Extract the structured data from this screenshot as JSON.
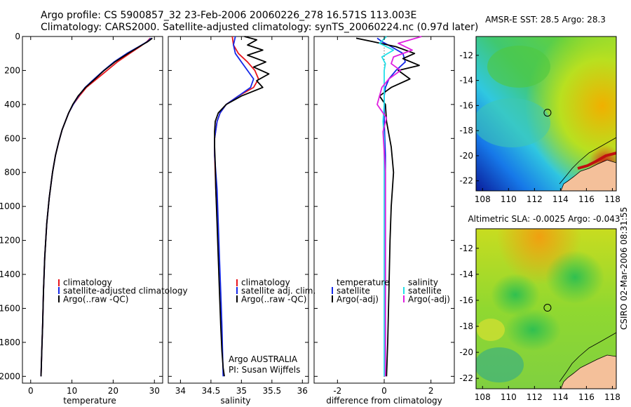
{
  "header": {
    "title_line1": "Argo profile: CS 5900857_32 23-Feb-2006 20060226_278 16.571S 113.003E",
    "title_line2": "Climatology: CARS2000. Satellite-adjusted climatology: synTS_20060224.nc (0.97d later)"
  },
  "footer": {
    "stamp": "CSIRO 02-Mar-2006 08:31:55",
    "credit_line1": "Argo AUSTRALIA",
    "credit_line2": "PI: Susan Wijffels"
  },
  "colors": {
    "climatology": "#e8141c",
    "satellite": "#1428e8",
    "argo": "#000000",
    "diff_sal_satellite": "#22e0e8",
    "diff_sal_argo": "#e020e0",
    "land": "#f4c09a"
  },
  "chart_data": [
    {
      "id": "temperature",
      "type": "line",
      "xlabel": "temperature",
      "ylabel": "",
      "xlim": [
        -2,
        32
      ],
      "ylim": [
        2040,
        0
      ],
      "xticks": [
        0,
        10,
        20,
        30
      ],
      "yticks": [
        0,
        200,
        400,
        600,
        800,
        1000,
        1200,
        1400,
        1600,
        1800,
        2000
      ],
      "legend": {
        "position": "lower-center",
        "entries": [
          "climatology",
          "satellite-adjusted climatology",
          "Argo(..raw -QC)"
        ]
      },
      "series": [
        {
          "name": "climatology",
          "color_key": "climatology",
          "x": [
            29,
            28.2,
            26.5,
            24,
            21,
            18.5,
            16,
            13.5,
            11.8,
            10.3,
            9.2,
            8.4,
            7.6,
            6.8,
            6.0,
            5.3,
            4.5,
            3.9,
            3.4,
            3.1,
            2.9,
            2.7,
            2.5
          ],
          "y": [
            10,
            30,
            60,
            100,
            150,
            200,
            250,
            300,
            350,
            400,
            450,
            500,
            550,
            620,
            700,
            800,
            950,
            1100,
            1300,
            1500,
            1700,
            1850,
            2000
          ]
        },
        {
          "name": "satellite-adjusted climatology",
          "color_key": "satellite",
          "x": [
            29.2,
            28.3,
            26.2,
            23.3,
            20.2,
            17.7,
            15.4,
            13.2,
            11.6,
            10.3,
            9.2,
            8.4,
            7.6,
            6.8,
            6.0,
            5.3,
            4.5,
            3.9,
            3.4,
            3.1,
            2.9,
            2.7,
            2.5
          ],
          "y": [
            10,
            30,
            60,
            100,
            150,
            200,
            250,
            300,
            350,
            400,
            450,
            500,
            550,
            620,
            700,
            800,
            950,
            1100,
            1300,
            1500,
            1700,
            1850,
            2000
          ]
        },
        {
          "name": "Argo(..raw -QC)",
          "color_key": "argo",
          "x": [
            29.5,
            28.4,
            26.3,
            23.6,
            20.4,
            17.8,
            15.6,
            13.3,
            11.5,
            10.2,
            9.2,
            8.4,
            7.6,
            6.8,
            6.0,
            5.3,
            4.5,
            3.9,
            3.4,
            3.1,
            2.9,
            2.7,
            2.5
          ],
          "y": [
            10,
            30,
            60,
            100,
            150,
            200,
            250,
            300,
            350,
            400,
            450,
            500,
            550,
            620,
            700,
            800,
            950,
            1100,
            1300,
            1500,
            1700,
            1850,
            2000
          ]
        }
      ]
    },
    {
      "id": "salinity",
      "type": "line",
      "xlabel": "salinity",
      "ylabel": "",
      "xlim": [
        33.8,
        36.1
      ],
      "ylim": [
        2040,
        0
      ],
      "xticks": [
        34,
        34.5,
        35,
        35.5,
        36
      ],
      "legend": {
        "position": "lower-center",
        "entries": [
          "climatology",
          "satellite adj. clim.",
          "Argo(..raw -QC)"
        ]
      },
      "series": [
        {
          "name": "climatology",
          "color_key": "climatology",
          "x": [
            34.85,
            34.87,
            34.95,
            35.1,
            35.22,
            35.28,
            35.2,
            34.95,
            34.75,
            34.65,
            34.6,
            34.56,
            34.56,
            34.57,
            34.58,
            34.6
          ],
          "y": [
            0,
            50,
            100,
            150,
            200,
            250,
            300,
            350,
            400,
            450,
            500,
            600,
            700,
            800,
            900,
            1050
          ]
        },
        {
          "name": "satellite adj. clim.",
          "color_key": "satellite",
          "x": [
            34.9,
            34.87,
            34.9,
            35.0,
            35.1,
            35.2,
            35.15,
            34.95,
            34.75,
            34.65,
            34.6,
            34.56,
            34.56,
            34.58,
            34.6,
            34.62,
            34.64,
            34.66,
            34.68,
            34.7
          ],
          "y": [
            0,
            50,
            100,
            150,
            200,
            250,
            300,
            350,
            400,
            450,
            500,
            600,
            700,
            800,
            900,
            1100,
            1300,
            1500,
            1700,
            2000
          ]
        },
        {
          "name": "Argo(..raw -QC)",
          "color_key": "argo",
          "x": [
            35.05,
            35.25,
            35.1,
            35.35,
            35.1,
            35.4,
            35.2,
            35.45,
            35.25,
            35.35,
            35.0,
            34.75,
            34.62,
            34.57,
            34.56,
            34.56,
            34.57,
            34.58,
            34.6,
            34.62,
            34.64,
            34.66,
            34.68,
            34.7,
            34.72
          ],
          "y": [
            0,
            20,
            50,
            80,
            110,
            150,
            180,
            220,
            260,
            300,
            350,
            400,
            450,
            500,
            560,
            650,
            750,
            900,
            1100,
            1300,
            1500,
            1700,
            1850,
            1950,
            2000
          ]
        }
      ]
    },
    {
      "id": "difference",
      "type": "line",
      "xlabel": "difference from climatology",
      "ylabel": "",
      "xlim": [
        -3,
        3
      ],
      "ylim": [
        2040,
        0
      ],
      "xticks": [
        -2,
        0,
        2
      ],
      "legend": {
        "position": "lower-center",
        "headers": [
          "temperature",
          "salinity"
        ],
        "entries": [
          "satellite",
          "Argo(-adj)",
          "satellite",
          "Argo(-adj)"
        ]
      },
      "series": [
        {
          "name": "temperature satellite",
          "color_key": "satellite",
          "x": [
            -0.3,
            -0.1,
            0.3,
            0.8,
            0.9,
            0.5,
            0.2,
            0.05,
            0,
            0,
            0,
            0.05,
            0.05,
            0.05,
            0.05,
            0.05
          ],
          "y": [
            10,
            30,
            60,
            100,
            150,
            200,
            250,
            300,
            350,
            400,
            500,
            700,
            1000,
            1300,
            1600,
            2000
          ]
        },
        {
          "name": "temperature Argo(-adj)",
          "color_key": "argo",
          "x": [
            -1.2,
            -0.5,
            0.5,
            1.3,
            0.8,
            1.5,
            0.6,
            1.1,
            0.3,
            -0.2,
            0.05,
            0.1,
            0.3,
            0.4,
            0.3,
            0.25,
            0.2,
            0.15,
            0.1
          ],
          "y": [
            10,
            30,
            60,
            100,
            130,
            170,
            200,
            250,
            300,
            350,
            400,
            500,
            650,
            800,
            1000,
            1200,
            1500,
            1800,
            2000
          ]
        },
        {
          "name": "salinity satellite",
          "color_key": "diff_sal_satellite",
          "x": [
            0.1,
            -0.2,
            0.4,
            -0.1,
            0.05,
            0,
            0,
            0,
            -0.05,
            0,
            0,
            0,
            0,
            0,
            0
          ],
          "y": [
            0,
            40,
            80,
            120,
            160,
            200,
            300,
            400,
            500,
            600,
            800,
            1100,
            1400,
            1700,
            2000
          ]
        },
        {
          "name": "salinity Argo(-adj)",
          "color_key": "diff_sal_argo",
          "x": [
            1.6,
            0.6,
            1.2,
            0.4,
            0.3,
            0.7,
            0.2,
            -0.1,
            -0.3,
            0.1,
            -0.05,
            0.05,
            0.05,
            0.05,
            0.05,
            0.05
          ],
          "y": [
            0,
            40,
            80,
            120,
            160,
            200,
            250,
            300,
            400,
            480,
            560,
            800,
            1100,
            1400,
            1700,
            2000
          ]
        }
      ]
    },
    {
      "id": "sst-map",
      "type": "heatmap",
      "title": "AMSR-E SST: 28.5 Argo: 28.3",
      "xlim": [
        107.5,
        118.3
      ],
      "ylim": [
        -22.8,
        -10.5
      ],
      "xticks": [
        108,
        110,
        112,
        114,
        116,
        118
      ],
      "yticks": [
        -12,
        -14,
        -16,
        -18,
        -20,
        -22
      ],
      "marker": {
        "lon": 113.003,
        "lat": -16.571
      }
    },
    {
      "id": "sla-map",
      "type": "heatmap",
      "title": "Altimetric SLA: -0.0025 Argo: -0.043",
      "xlim": [
        107.5,
        118.3
      ],
      "ylim": [
        -22.8,
        -10.5
      ],
      "xticks": [
        108,
        110,
        112,
        114,
        116,
        118
      ],
      "yticks": [
        -12,
        -14,
        -16,
        -18,
        -20,
        -22
      ],
      "marker": {
        "lon": 113.003,
        "lat": -16.571
      }
    }
  ]
}
